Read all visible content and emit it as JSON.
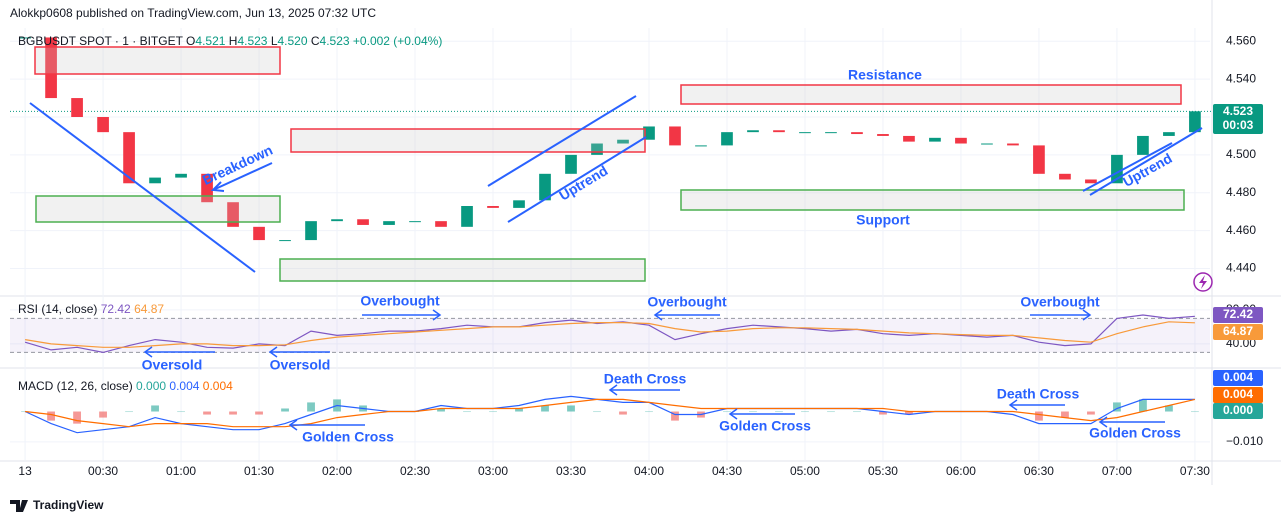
{
  "header": {
    "publisher": "Alokkp0608 published on TradingView.com, Jun 13, 2025 07:32 UTC"
  },
  "legend": {
    "symbol": "BGBUSDT SPOT · 1 · BITGET",
    "open_label": "O",
    "open": "4.521",
    "high_label": "H",
    "high": "4.523",
    "low_label": "L",
    "low": "4.520",
    "close_label": "C",
    "close": "4.523",
    "change": "+0.002 (+0.04%)",
    "rsi_title": "RSI (14, close)",
    "rsi_value": "72.42",
    "rsi_ma": "64.87",
    "macd_title": "MACD (12, 26, close)",
    "macd_hist": "0.000",
    "macd_value": "0.004",
    "macd_signal": "0.004",
    "price_badge": "4.523",
    "countdown": "00:03"
  },
  "annotations": {
    "breakdown": "Breakdown",
    "uptrend_1": "Uptrend",
    "uptrend_2": "Uptrend",
    "resistance": "Resistance",
    "support": "Support",
    "overbought_1": "Overbought",
    "overbought_2": "Overbought",
    "overbought_3": "Overbought",
    "oversold_1": "Oversold",
    "oversold_2": "Oversold",
    "death_cross_1": "Death Cross",
    "death_cross_2": "Death Cross",
    "golden_cross_1": "Golden Cross",
    "golden_cross_2": "Golden Cross",
    "golden_cross_3": "Golden Cross"
  },
  "chart_data": [
    {
      "type": "candlestick",
      "up_color": "#089981",
      "down_color": "#f23645",
      "x": [
        0,
        10,
        20,
        30,
        40,
        50,
        60,
        70,
        80,
        90,
        100,
        110,
        120,
        130,
        140,
        150,
        160,
        170,
        180,
        190,
        200,
        210,
        220,
        230,
        240,
        250,
        260,
        270,
        280,
        290,
        300,
        310,
        320,
        330,
        340,
        350,
        360,
        370,
        380,
        390,
        400,
        410,
        420,
        430,
        440,
        450
      ],
      "values": [
        4.562,
        4.53,
        4.52,
        4.512,
        4.485,
        4.488,
        4.49,
        4.475,
        4.462,
        4.455,
        4.455,
        4.465,
        4.466,
        4.463,
        4.465,
        4.465,
        4.462,
        4.473,
        4.472,
        4.476,
        4.49,
        4.5,
        4.506,
        4.508,
        4.515,
        4.505,
        4.505,
        4.512,
        4.513,
        4.512,
        4.512,
        4.512,
        4.511,
        4.51,
        4.507,
        4.509,
        4.506,
        4.506,
        4.505,
        4.49,
        4.487,
        4.485,
        4.5,
        4.51,
        4.512,
        4.523
      ],
      "xlim": [
        -5.8,
        455.8
      ],
      "xticks": [
        {
          "value": 0,
          "label": "13"
        },
        {
          "value": 30,
          "label": "00:30"
        },
        {
          "value": 60,
          "label": "01:00"
        },
        {
          "value": 90,
          "label": "01:30"
        },
        {
          "value": 120,
          "label": "02:00"
        },
        {
          "value": 150,
          "label": "02:30"
        },
        {
          "value": 180,
          "label": "03:00"
        },
        {
          "value": 210,
          "label": "03:30"
        },
        {
          "value": 240,
          "label": "04:00"
        },
        {
          "value": 270,
          "label": "04:30"
        },
        {
          "value": 300,
          "label": "05:00"
        },
        {
          "value": 330,
          "label": "05:30"
        },
        {
          "value": 360,
          "label": "06:00"
        },
        {
          "value": 390,
          "label": "06:30"
        },
        {
          "value": 420,
          "label": "07:00"
        },
        {
          "value": 450,
          "label": "07:30"
        }
      ],
      "ylim": [
        4.426,
        4.567
      ],
      "yticks": [
        {
          "value": 4.56,
          "label": "4.560"
        },
        {
          "value": 4.54,
          "label": "4.540"
        },
        {
          "value": 4.52,
          "label": "4.520"
        },
        {
          "value": 4.5,
          "label": "4.500"
        },
        {
          "value": 4.48,
          "label": "4.480"
        },
        {
          "value": 4.46,
          "label": "4.460"
        },
        {
          "value": 4.44,
          "label": "4.440"
        }
      ]
    },
    {
      "type": "line",
      "band": [
        30,
        70
      ],
      "series": [
        {
          "color": "#7e57c2",
          "values": [
            42,
            33,
            36,
            30,
            38,
            45,
            42,
            36,
            35,
            40,
            38,
            55,
            50,
            52,
            55,
            55,
            58,
            62,
            60,
            60,
            65,
            68,
            64,
            66,
            62,
            45,
            52,
            58,
            62,
            60,
            58,
            55,
            57,
            52,
            50,
            52,
            50,
            48,
            50,
            42,
            38,
            40,
            70,
            74,
            70,
            72.42
          ]
        },
        {
          "color": "#f89a3a",
          "values": [
            45,
            40,
            38,
            36,
            36,
            38,
            40,
            40,
            38,
            38,
            39,
            44,
            48,
            50,
            52,
            54,
            56,
            58,
            60,
            60,
            62,
            64,
            65,
            65,
            64,
            58,
            54,
            55,
            58,
            59,
            59,
            58,
            57,
            55,
            53,
            52,
            51,
            50,
            50,
            47,
            44,
            42,
            52,
            60,
            66,
            64.87
          ]
        }
      ],
      "ylim": [
        14,
        94
      ],
      "yticks": [
        {
          "value": 80,
          "label": "80.00"
        },
        {
          "value": 40,
          "label": "40.00"
        }
      ]
    },
    {
      "type": "macd",
      "series": [
        {
          "color": "#2962ff",
          "values": [
            0,
            -0.004,
            -0.007,
            -0.006,
            -0.005,
            -0.002,
            -0.004,
            -0.005,
            -0.006,
            -0.006,
            -0.004,
            -0.001,
            0.002,
            0.001,
            0,
            0,
            0.002,
            0.001,
            0.001,
            0.002,
            0.004,
            0.005,
            0.004,
            0.003,
            0.003,
            -0.001,
            -0.001,
            0.001,
            0.001,
            0.001,
            0.001,
            0.001,
            0.001,
            0,
            -0.001,
            0,
            0,
            0,
            -0.001,
            -0.004,
            -0.004,
            -0.004,
            0.001,
            0.004,
            0.004,
            0.004
          ]
        },
        {
          "color": "#ff6d00",
          "values": [
            0,
            -0.001,
            -0.003,
            -0.004,
            -0.005,
            -0.004,
            -0.004,
            -0.004,
            -0.005,
            -0.005,
            -0.005,
            -0.004,
            -0.002,
            -0.001,
            0,
            0,
            0.001,
            0.001,
            0.001,
            0.001,
            0.002,
            0.003,
            0.004,
            0.004,
            0.003,
            0.002,
            0.001,
            0.001,
            0.001,
            0.001,
            0.001,
            0.001,
            0.001,
            0.001,
            0,
            0,
            0,
            0,
            0,
            -0.001,
            -0.002,
            -0.003,
            -0.002,
            0,
            0.002,
            0.004
          ]
        }
      ],
      "histogram": {
        "up_color": "#26a69a",
        "down_color": "#ef5350",
        "values": [
          0,
          -0.003,
          -0.004,
          -0.002,
          0,
          0.002,
          0,
          -0.001,
          -0.001,
          -0.001,
          0.001,
          0.003,
          0.004,
          0.002,
          0,
          0,
          0.001,
          0,
          0,
          0.001,
          0.002,
          0.002,
          0,
          -0.001,
          0,
          -0.003,
          -0.002,
          0,
          0,
          0,
          0,
          0,
          0,
          -0.001,
          -0.001,
          0,
          0,
          0,
          0,
          -0.003,
          -0.002,
          -0.001,
          0.003,
          0.004,
          0.002,
          0
        ]
      },
      "ylim": [
        -0.016,
        0.0137
      ],
      "yticks": [
        {
          "value": -0.01,
          "label": "−0.010"
        }
      ]
    }
  ],
  "footer": {
    "brand": "TradingView"
  }
}
